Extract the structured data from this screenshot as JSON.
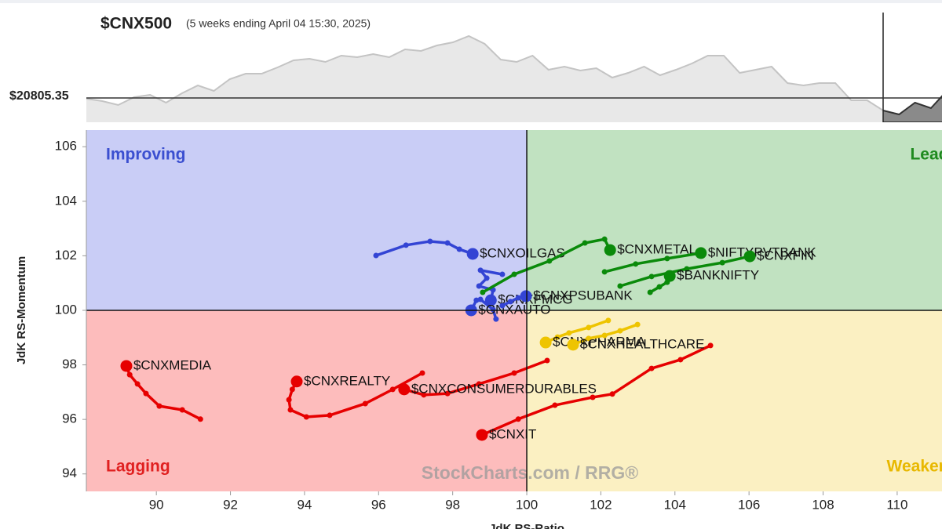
{
  "chart_data": [
    {
      "type": "area",
      "title": "$CNX500",
      "subtitle": "(5 weeks ending April 04 15:30, 2025)",
      "level": {
        "value": 20805.35,
        "label": "$20805.35"
      },
      "ylim": [
        19875,
        24075
      ],
      "values": [
        20775,
        20685,
        20535,
        20835,
        20925,
        20625,
        20985,
        21285,
        21075,
        21525,
        21735,
        21735,
        21975,
        22245,
        22305,
        22185,
        22425,
        22365,
        22485,
        22365,
        22665,
        22605,
        22815,
        22935,
        23175,
        22875,
        22275,
        22185,
        22425,
        21885,
        22005,
        21855,
        21945,
        21585,
        21765,
        22005,
        21675,
        21885,
        22125,
        22425,
        22425,
        21765,
        21885,
        22005,
        21375,
        21285,
        21375,
        21375,
        20715,
        20715,
        20325,
        20175,
        20625,
        20415,
        21075,
        21135
      ]
    },
    {
      "type": "rrg",
      "x_label": "JdK RS-Ratio",
      "y_label": "JdK RS-Momentum",
      "xlim": [
        88.11,
        111.21
      ],
      "ylim": [
        93.36,
        106.61
      ],
      "xticks": [
        90,
        92,
        94,
        96,
        98,
        100,
        102,
        104,
        106,
        108,
        110
      ],
      "yticks": [
        94,
        96,
        98,
        100,
        102,
        104,
        106
      ],
      "center": {
        "x": 100,
        "y": 100
      },
      "quadrants": [
        {
          "name": "Improving",
          "color": "#c9cdf6",
          "text_color": "#3b4fd0"
        },
        {
          "name": "Leading",
          "color": "#c1e2c1",
          "text_color": "#1f8a1f"
        },
        {
          "name": "Lagging",
          "color": "#fdbcbc",
          "text_color": "#e02020"
        },
        {
          "name": "Weakening",
          "color": "#fbf0c2",
          "text_color": "#e8b800"
        }
      ],
      "watermark": "StockCharts.com / RRG®",
      "series": [
        {
          "name": "$CNXMEDIA",
          "color": "#e60000",
          "x": [
            91.19,
            90.7,
            90.08,
            89.72,
            89.49,
            89.28,
            89.19
          ],
          "y": [
            96.01,
            96.35,
            96.49,
            96.95,
            97.3,
            97.64,
            97.96
          ]
        },
        {
          "name": "$CNXREALTY",
          "color": "#e60000",
          "x": [
            97.18,
            96.38,
            95.64,
            94.68,
            94.05,
            93.62,
            93.58,
            93.67,
            93.79
          ],
          "y": [
            97.7,
            97.1,
            96.58,
            96.15,
            96.09,
            96.35,
            96.72,
            97.1,
            97.39
          ]
        },
        {
          "name": "$CNXCONSUMERDURABLES",
          "color": "#e60000",
          "x": [
            100.55,
            99.66,
            98.71,
            97.86,
            97.22,
            96.69
          ],
          "y": [
            98.16,
            97.7,
            97.3,
            96.95,
            96.9,
            97.1
          ]
        },
        {
          "name": "$CNXIT",
          "color": "#e60000",
          "x": [
            104.96,
            104.15,
            103.37,
            102.31,
            101.78,
            100.76,
            99.77,
            98.79
          ],
          "y": [
            98.71,
            98.19,
            97.87,
            96.93,
            96.81,
            96.52,
            96.01,
            95.43
          ]
        },
        {
          "name": "$CNXPHARMA",
          "color": "#eec400",
          "x": [
            102.2,
            101.67,
            101.14,
            100.83,
            100.51
          ],
          "y": [
            99.63,
            99.37,
            99.17,
            99.02,
            98.82
          ]
        },
        {
          "name": "$CNXHEALTHCARE",
          "color": "#eec400",
          "x": [
            102.99,
            102.52,
            102.1,
            101.67,
            101.25
          ],
          "y": [
            99.48,
            99.25,
            99.08,
            98.97,
            98.74
          ]
        },
        {
          "name": "$CNXOILGAS",
          "color": "#3344d4",
          "x": [
            95.93,
            96.74,
            97.39,
            97.86,
            98.18,
            98.54
          ],
          "y": [
            102.01,
            102.39,
            102.53,
            102.47,
            102.24,
            102.07
          ]
        },
        {
          "name": "$CNXFMCG",
          "color": "#3344d4",
          "x": [
            99.34,
            98.75,
            98.92,
            98.71,
            99.09,
            99.03
          ],
          "y": [
            101.32,
            101.47,
            101.18,
            100.89,
            100.75,
            100.37
          ]
        },
        {
          "name": "$CNXAUTO",
          "color": "#3344d4",
          "x": [
            99.17,
            99.09,
            98.75,
            98.64,
            98.5
          ],
          "y": [
            99.68,
            100.03,
            100.4,
            100.37,
            100.0
          ]
        },
        {
          "name": "$CNXPSUBANK",
          "color": "#3344d4",
          "x": [
            99.34,
            99.56,
            99.77,
            99.98
          ],
          "y": [
            100.17,
            100.32,
            100.46,
            100.52
          ]
        },
        {
          "name": "$CNXMETAL",
          "color": "#0a8a0a",
          "x": [
            98.81,
            99.66,
            100.61,
            101.57,
            102.1,
            102.25
          ],
          "y": [
            100.66,
            101.32,
            101.81,
            102.47,
            102.61,
            102.21
          ]
        },
        {
          "name": "$NIFTYPVTBANK",
          "color": "#0a8a0a",
          "x": [
            102.1,
            102.94,
            103.79,
            104.7
          ],
          "y": [
            101.41,
            101.7,
            101.9,
            102.1
          ]
        },
        {
          "name": "$CNXFIN",
          "color": "#0a8a0a",
          "x": [
            102.52,
            103.37,
            104.32,
            105.28,
            106.02
          ],
          "y": [
            100.89,
            101.24,
            101.52,
            101.75,
            101.98
          ]
        },
        {
          "name": "$BANKNIFTY",
          "color": "#0a8a0a",
          "x": [
            103.33,
            103.58,
            103.79,
            103.86
          ],
          "y": [
            100.66,
            100.86,
            101.03,
            101.26
          ]
        }
      ]
    }
  ]
}
